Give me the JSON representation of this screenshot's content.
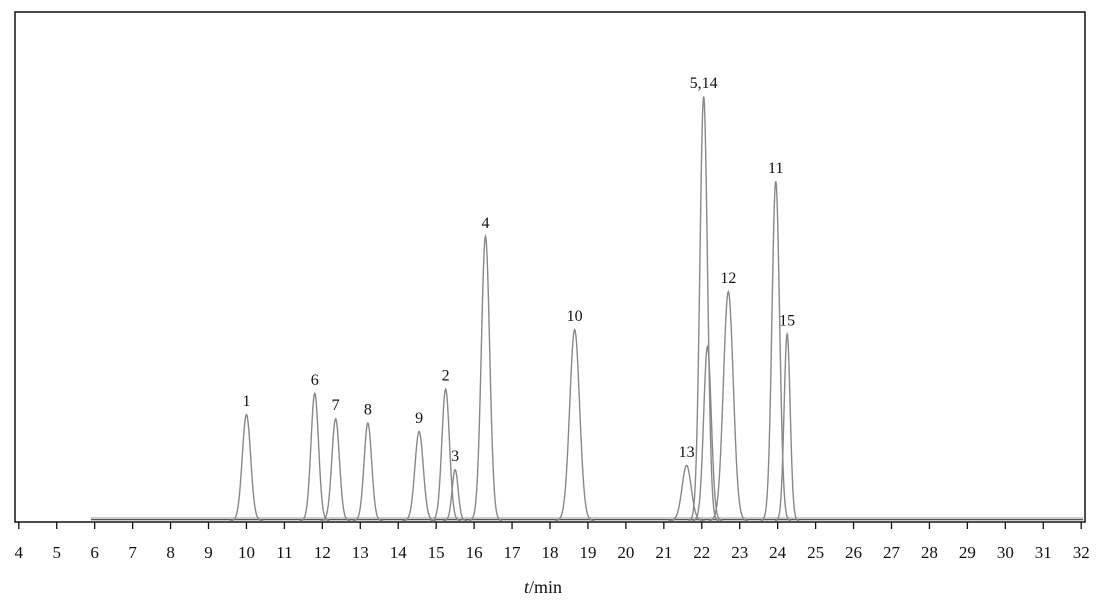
{
  "chart_data": {
    "type": "line",
    "title": "",
    "xlabel_italic": "t",
    "xlabel_rest": "/min",
    "xlim": [
      3.9,
      32.1
    ],
    "ylim": [
      0,
      1
    ],
    "grid": false,
    "x_ticks": [
      4,
      5,
      6,
      7,
      8,
      9,
      10,
      11,
      12,
      13,
      14,
      15,
      16,
      17,
      18,
      19,
      20,
      21,
      22,
      23,
      24,
      25,
      26,
      27,
      28,
      29,
      30,
      31,
      32
    ],
    "peaks": [
      {
        "label": "1",
        "x": 10.0,
        "height": 0.25,
        "width": 0.11
      },
      {
        "label": "6",
        "x": 11.8,
        "height": 0.3,
        "width": 0.1
      },
      {
        "label": "7",
        "x": 12.35,
        "height": 0.24,
        "width": 0.1
      },
      {
        "label": "8",
        "x": 13.2,
        "height": 0.23,
        "width": 0.1
      },
      {
        "label": "9",
        "x": 14.55,
        "height": 0.21,
        "width": 0.11
      },
      {
        "label": "2",
        "x": 15.25,
        "height": 0.31,
        "width": 0.1
      },
      {
        "label": "3",
        "x": 15.5,
        "height": 0.12,
        "width": 0.08
      },
      {
        "label": "4",
        "x": 16.3,
        "height": 0.67,
        "width": 0.11
      },
      {
        "label": "10",
        "x": 18.65,
        "height": 0.45,
        "width": 0.13
      },
      {
        "label": "13",
        "x": 21.6,
        "height": 0.13,
        "width": 0.12
      },
      {
        "label": "5,14",
        "x": 22.05,
        "height": 1.0,
        "width": 0.1
      },
      {
        "label": "",
        "x": 22.15,
        "height": 0.41,
        "width": 0.1
      },
      {
        "label": "12",
        "x": 22.7,
        "height": 0.54,
        "width": 0.13
      },
      {
        "label": "11",
        "x": 23.95,
        "height": 0.8,
        "width": 0.1
      },
      {
        "label": "15",
        "x": 24.25,
        "height": 0.44,
        "width": 0.08
      }
    ]
  }
}
